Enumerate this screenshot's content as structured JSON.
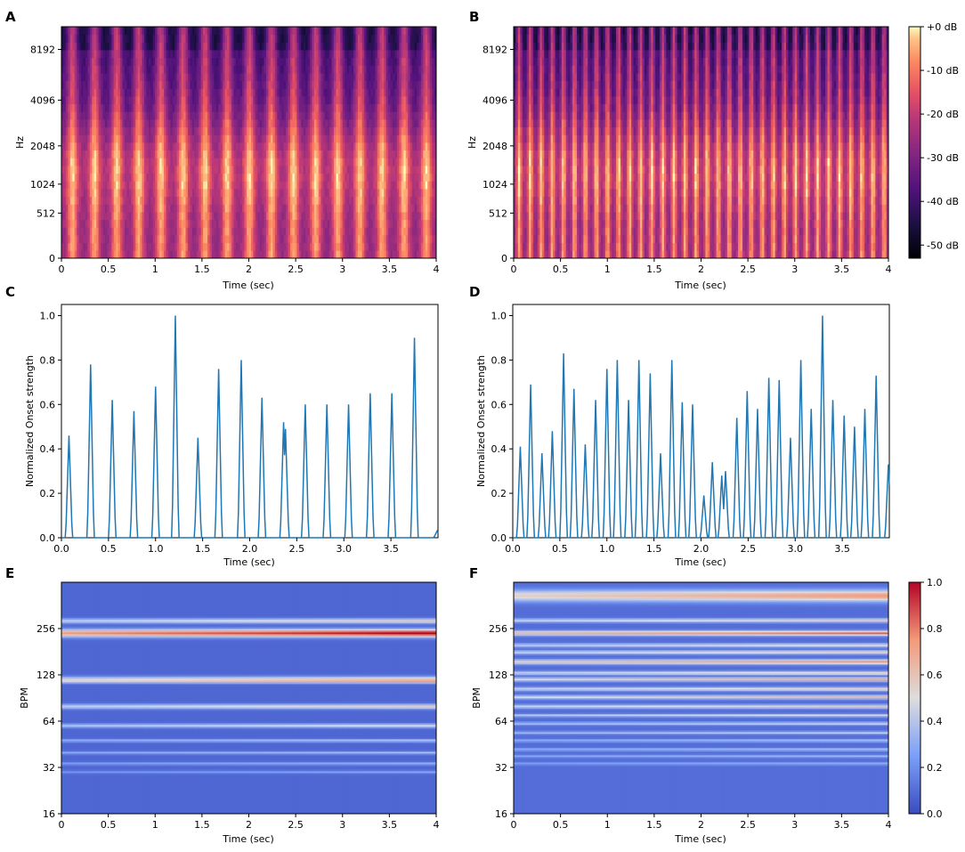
{
  "chart_data": [
    {
      "panel": "A",
      "type": "heatmap",
      "colormap": "magma",
      "xlabel": "Time (sec)",
      "ylabel": "Hz",
      "xlim": [
        0,
        4
      ],
      "x_ticks": [
        "0",
        "0.5",
        "1",
        "1.5",
        "2",
        "2.5",
        "3",
        "3.5",
        "4"
      ],
      "y_ticks": [
        "0",
        "512",
        "1024",
        "2048",
        "4096",
        "8192"
      ],
      "pulse_period_sec": 0.236,
      "pulse_count": 18
    },
    {
      "panel": "B",
      "type": "heatmap",
      "colormap": "magma",
      "xlabel": "Time (sec)",
      "ylabel": "Hz",
      "xlim": [
        0,
        4
      ],
      "x_ticks": [
        "0",
        "0.5",
        "1",
        "1.5",
        "2",
        "2.5",
        "3",
        "3.5",
        "4"
      ],
      "y_ticks": [
        "0",
        "512",
        "1024",
        "2048",
        "4096",
        "8192"
      ],
      "pulse_period_sec": 0.118,
      "pulse_count": 34,
      "colorbar": {
        "ticks": [
          "+0 dB",
          "-10 dB",
          "-20 dB",
          "-30 dB",
          "-40 dB",
          "-50 dB"
        ],
        "range": [
          -53,
          0
        ]
      }
    },
    {
      "panel": "C",
      "type": "line",
      "xlabel": "Time (sec)",
      "ylabel": "Normalized Onset strength",
      "xlim": [
        0,
        4
      ],
      "ylim": [
        0,
        1.05
      ],
      "x_ticks": [
        "0.0",
        "0.5",
        "1.0",
        "1.5",
        "2.0",
        "2.5",
        "3.0",
        "3.5"
      ],
      "y_ticks": [
        "0.0",
        "0.2",
        "0.4",
        "0.6",
        "0.8",
        "1.0"
      ],
      "color": "#1f77b4",
      "peaks": [
        [
          0.08,
          0.46
        ],
        [
          0.31,
          0.78
        ],
        [
          0.54,
          0.62
        ],
        [
          0.77,
          0.57
        ],
        [
          1.0,
          0.68
        ],
        [
          1.21,
          1.0
        ],
        [
          1.45,
          0.45
        ],
        [
          1.67,
          0.76
        ],
        [
          1.91,
          0.8
        ],
        [
          2.13,
          0.63
        ],
        [
          2.36,
          0.52
        ],
        [
          2.38,
          0.49
        ],
        [
          2.59,
          0.6
        ],
        [
          2.82,
          0.6
        ],
        [
          3.05,
          0.6
        ],
        [
          3.28,
          0.65
        ],
        [
          3.51,
          0.65
        ],
        [
          3.75,
          0.9
        ],
        [
          3.99,
          0.03
        ]
      ]
    },
    {
      "panel": "D",
      "type": "line",
      "xlabel": "Time (sec)",
      "ylabel": "Normalized Onset strength",
      "xlim": [
        0,
        4
      ],
      "ylim": [
        0,
        1.05
      ],
      "x_ticks": [
        "0.0",
        "0.5",
        "1.0",
        "1.5",
        "2.0",
        "2.5",
        "3.0",
        "3.5"
      ],
      "y_ticks": [
        "0.0",
        "0.2",
        "0.4",
        "0.6",
        "0.8",
        "1.0"
      ],
      "color": "#1f77b4",
      "peaks": [
        [
          0.08,
          0.41
        ],
        [
          0.19,
          0.69
        ],
        [
          0.31,
          0.38
        ],
        [
          0.42,
          0.48
        ],
        [
          0.54,
          0.83
        ],
        [
          0.65,
          0.67
        ],
        [
          0.77,
          0.42
        ],
        [
          0.88,
          0.62
        ],
        [
          1.0,
          0.76
        ],
        [
          1.11,
          0.8
        ],
        [
          1.23,
          0.62
        ],
        [
          1.34,
          0.8
        ],
        [
          1.46,
          0.74
        ],
        [
          1.57,
          0.38
        ],
        [
          1.69,
          0.8
        ],
        [
          1.8,
          0.61
        ],
        [
          1.91,
          0.6
        ],
        [
          2.03,
          0.19
        ],
        [
          2.12,
          0.34
        ],
        [
          2.22,
          0.28
        ],
        [
          2.26,
          0.3
        ],
        [
          2.38,
          0.54
        ],
        [
          2.49,
          0.66
        ],
        [
          2.6,
          0.58
        ],
        [
          2.72,
          0.72
        ],
        [
          2.83,
          0.71
        ],
        [
          2.95,
          0.45
        ],
        [
          3.06,
          0.8
        ],
        [
          3.17,
          0.58
        ],
        [
          3.29,
          1.0
        ],
        [
          3.4,
          0.62
        ],
        [
          3.52,
          0.55
        ],
        [
          3.63,
          0.5
        ],
        [
          3.74,
          0.58
        ],
        [
          3.86,
          0.73
        ],
        [
          3.99,
          0.33
        ]
      ]
    },
    {
      "panel": "E",
      "type": "heatmap",
      "colormap": "coolwarm",
      "xlabel": "Time (sec)",
      "ylabel": "BPM",
      "xlim": [
        0,
        4
      ],
      "x_ticks": [
        "0",
        "0.5",
        "1",
        "1.5",
        "2",
        "2.5",
        "3",
        "3.5",
        "4"
      ],
      "y_ticks": [
        "16",
        "32",
        "64",
        "128",
        "256"
      ],
      "bands": [
        [
          240,
          0.95,
          0.08
        ],
        [
          288,
          0.5,
          0.05
        ],
        [
          120,
          0.55,
          0.06
        ],
        [
          116,
          0.7,
          0.03
        ],
        [
          80,
          0.5,
          0.05
        ],
        [
          60,
          0.45,
          0.04
        ],
        [
          48,
          0.35,
          0.03
        ],
        [
          40,
          0.3,
          0.03
        ],
        [
          34,
          0.25,
          0.03
        ],
        [
          30,
          0.2,
          0.03
        ]
      ]
    },
    {
      "panel": "F",
      "type": "heatmap",
      "colormap": "coolwarm",
      "xlabel": "Time (sec)",
      "ylabel": "BPM",
      "xlim": [
        0,
        4
      ],
      "x_ticks": [
        "0",
        "0.5",
        "1",
        "1.5",
        "2",
        "2.5",
        "3",
        "3.5",
        "4"
      ],
      "y_ticks": [
        "16",
        "32",
        "64",
        "128",
        "256"
      ],
      "colorbar": {
        "ticks": [
          "0.0",
          "0.2",
          "0.4",
          "0.6",
          "0.8",
          "1.0"
        ],
        "range": [
          0,
          1
        ]
      },
      "bands": [
        [
          420,
          0.65,
          0.12
        ],
        [
          240,
          0.75,
          0.05
        ],
        [
          290,
          0.5,
          0.04
        ],
        [
          200,
          0.45,
          0.04
        ],
        [
          180,
          0.5,
          0.04
        ],
        [
          156,
          0.65,
          0.05
        ],
        [
          132,
          0.5,
          0.04
        ],
        [
          120,
          0.6,
          0.04
        ],
        [
          104,
          0.5,
          0.04
        ],
        [
          92,
          0.55,
          0.04
        ],
        [
          80,
          0.5,
          0.04
        ],
        [
          70,
          0.45,
          0.03
        ],
        [
          62,
          0.4,
          0.03
        ],
        [
          54,
          0.35,
          0.03
        ],
        [
          48,
          0.3,
          0.03
        ],
        [
          42,
          0.3,
          0.03
        ],
        [
          38,
          0.25,
          0.03
        ],
        [
          34,
          0.22,
          0.03
        ]
      ]
    }
  ]
}
